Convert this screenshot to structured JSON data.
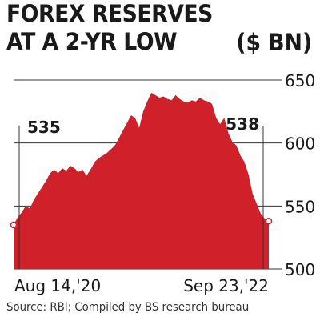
{
  "header": {
    "title_line1": "FOREX RESERVES",
    "title_line2": "AT A 2-YR LOW",
    "unit": "($ BN)"
  },
  "footer": {
    "source": "Source: RBI; Compiled by BS research bureau"
  },
  "colors": {
    "fill": "#d0202a",
    "grid": "#333333",
    "text": "#1a1a1a"
  },
  "chart_data": {
    "type": "area",
    "title": "FOREX RESERVES AT A 2-YR LOW",
    "ylabel": "($ BN)",
    "ylim": [
      500,
      650
    ],
    "yticks": [
      650,
      600,
      550,
      500
    ],
    "xtick_labels": [
      "Aug 14,'20",
      "Sep 23,'22"
    ],
    "start_label": "535",
    "end_label": "538",
    "series": [
      {
        "values": [
          535,
          541,
          545,
          550,
          548,
          555,
          560,
          565,
          570,
          576,
          579,
          576,
          580,
          578,
          582,
          580,
          577,
          579,
          574,
          579,
          585,
          588,
          590,
          592,
          595,
          598,
          604,
          610,
          616,
          622,
          620,
          612,
          625,
          633,
          640,
          638,
          636,
          637,
          635,
          634,
          638,
          635,
          633,
          632,
          634,
          633,
          636,
          634,
          633,
          631,
          620,
          615,
          620,
          608,
          601,
          598,
          590,
          585,
          575,
          560,
          552,
          544,
          540,
          538
        ]
      }
    ]
  }
}
